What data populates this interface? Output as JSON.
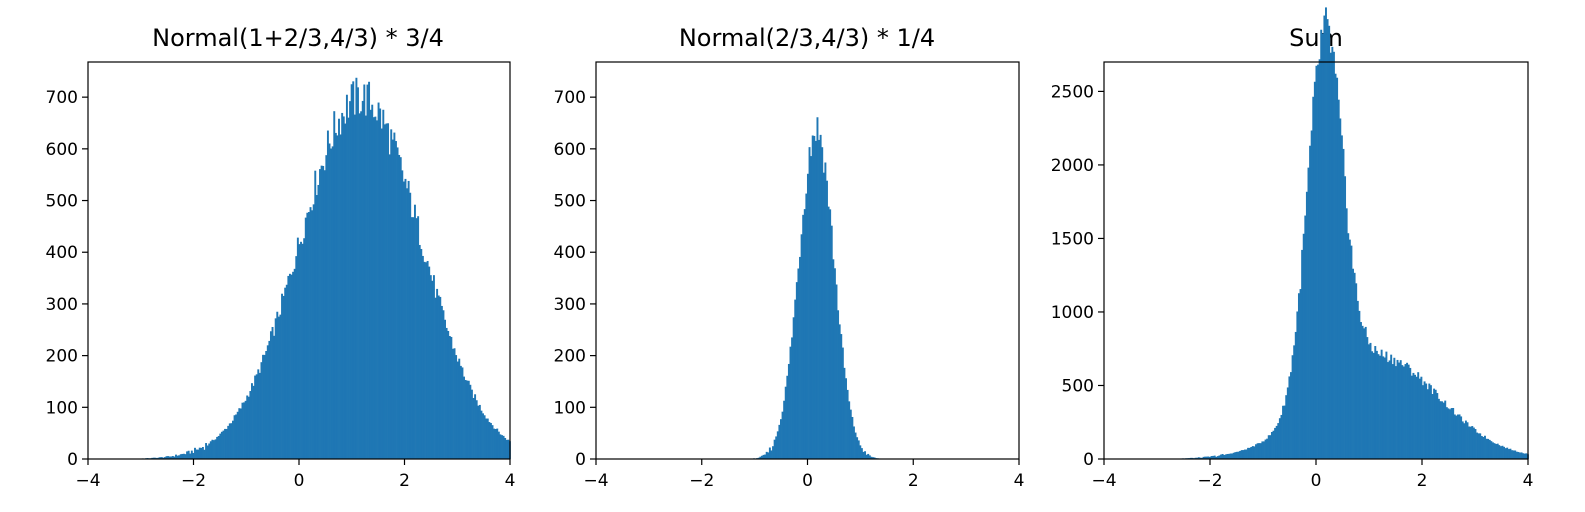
{
  "chart_data": [
    {
      "type": "bar",
      "title": "Normal(1+2/3,4/3) * 3/4",
      "xlim": [
        -4,
        4
      ],
      "ylim": [
        0,
        768
      ],
      "xticks": [
        -4,
        -2,
        0,
        2,
        4
      ],
      "xtick_labels": [
        "−4",
        "−2",
        "0",
        "2",
        "4"
      ],
      "yticks": [
        0,
        100,
        200,
        300,
        400,
        500,
        600,
        700
      ],
      "ytick_labels": [
        "0",
        "100",
        "200",
        "300",
        "400",
        "500",
        "600",
        "700"
      ],
      "color": "#1f77b4",
      "distribution": {
        "mean": 1.167,
        "sd": 1.15
      },
      "peak_count": 700,
      "series": [
        {
          "x": [
            -3.0,
            -2.5,
            -2.0,
            -1.5,
            -1.0,
            -0.5,
            0.0,
            0.5,
            1.0,
            1.5,
            2.0,
            2.5,
            3.0,
            3.5,
            4.0
          ],
          "values": [
            4,
            8,
            20,
            60,
            140,
            250,
            400,
            560,
            680,
            690,
            580,
            410,
            250,
            120,
            40
          ]
        }
      ]
    },
    {
      "type": "bar",
      "title": "Normal(2/3,4/3) * 1/4",
      "xlim": [
        -4,
        4
      ],
      "ylim": [
        0,
        768
      ],
      "xticks": [
        -4,
        -2,
        0,
        2,
        4
      ],
      "xtick_labels": [
        "−4",
        "−2",
        "0",
        "2",
        "4"
      ],
      "yticks": [
        0,
        100,
        200,
        300,
        400,
        500,
        600,
        700
      ],
      "ytick_labels": [
        "0",
        "100",
        "200",
        "300",
        "400",
        "500",
        "600",
        "700"
      ],
      "color": "#1f77b4",
      "distribution": {
        "mean": 0.167,
        "sd": 0.33
      },
      "peak_count": 640,
      "series": [
        {
          "x": [
            -1.0,
            -0.75,
            -0.5,
            -0.25,
            0.0,
            0.25,
            0.5,
            0.75,
            1.0,
            1.25
          ],
          "values": [
            4,
            25,
            110,
            330,
            600,
            630,
            420,
            160,
            30,
            5
          ]
        }
      ]
    },
    {
      "type": "bar",
      "title": "Sum",
      "xlim": [
        -4,
        4
      ],
      "ylim": [
        0,
        2700
      ],
      "xticks": [
        -4,
        -2,
        0,
        2,
        4
      ],
      "xtick_labels": [
        "−4",
        "−2",
        "0",
        "2",
        "4"
      ],
      "yticks": [
        0,
        500,
        1000,
        1500,
        2000,
        2500
      ],
      "ytick_labels": [
        "0",
        "500",
        "1000",
        "1500",
        "2000",
        "2500"
      ],
      "color": "#1f77b4",
      "series": [
        {
          "x": [
            -3.0,
            -2.0,
            -1.0,
            -0.5,
            -0.25,
            0.0,
            0.25,
            0.5,
            0.75,
            1.0,
            1.5,
            2.0,
            2.5,
            3.0,
            3.5,
            4.0
          ],
          "values": [
            5,
            40,
            200,
            500,
            1250,
            2200,
            2450,
            1700,
            950,
            740,
            680,
            560,
            380,
            220,
            90,
            30
          ]
        }
      ]
    }
  ]
}
